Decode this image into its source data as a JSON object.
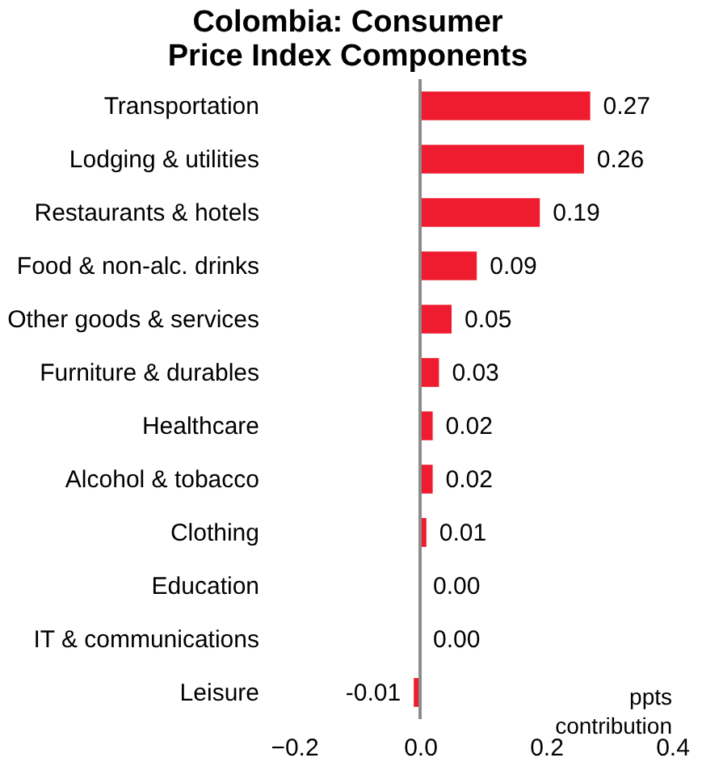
{
  "chart_data": {
    "type": "bar",
    "orientation": "horizontal",
    "title": "Colombia: Consumer Price Index Components",
    "categories": [
      "Transportation",
      "Lodging & utilities",
      "Restaurants & hotels",
      "Food & non-alc. drinks",
      "Other goods & services",
      "Furniture & durables",
      "Healthcare",
      "Alcohol & tobacco",
      "Clothing",
      "Education",
      "IT & communications",
      "Leisure"
    ],
    "values": [
      0.27,
      0.26,
      0.19,
      0.09,
      0.05,
      0.03,
      0.02,
      0.02,
      0.01,
      0,
      0,
      -0.01
    ],
    "value_labels": [
      "0.27",
      "0.26",
      "0.19",
      "0.09",
      "0.05",
      "0.03",
      "0.02",
      "0.02",
      "0.01",
      "0.00",
      "0.00",
      "-0.01"
    ],
    "color": "#ee1c2e",
    "xlim": [
      -0.2,
      0.4
    ],
    "xticks": [
      -0.2,
      {
        "value": 0,
        "label": "0.0"
      },
      0.2,
      0.4
    ],
    "annotations": [
      "ppts contribution"
    ],
    "ref_lines": [
      {
        "axis": "x",
        "value": 0,
        "color": "#8c8c8c"
      }
    ],
    "grid": false
  }
}
